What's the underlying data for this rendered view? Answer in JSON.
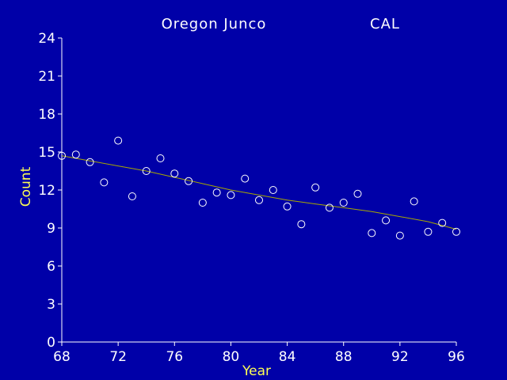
{
  "chart_data": {
    "type": "scatter",
    "title": "Oregon  Junco",
    "subtitle": "CAL",
    "xlabel": "Year",
    "ylabel": "Count",
    "xlim": [
      68,
      96
    ],
    "ylim": [
      0,
      24
    ],
    "xticks": [
      "68",
      "72",
      "76",
      "80",
      "84",
      "88",
      "92",
      "96"
    ],
    "yticks": [
      "0",
      "3",
      "6",
      "9",
      "12",
      "15",
      "18",
      "21",
      "24"
    ],
    "grid": false,
    "colors": {
      "background": "#0000a8",
      "axes": "#ffffff",
      "text": "#ffffff",
      "axis_labels": "#ffff54",
      "points": "#ffffff",
      "trend": "#a8a800"
    },
    "points": [
      {
        "x": 68,
        "y": 14.7
      },
      {
        "x": 69,
        "y": 14.8
      },
      {
        "x": 70,
        "y": 14.2
      },
      {
        "x": 71,
        "y": 12.6
      },
      {
        "x": 72,
        "y": 15.9
      },
      {
        "x": 73,
        "y": 11.5
      },
      {
        "x": 74,
        "y": 13.5
      },
      {
        "x": 75,
        "y": 14.5
      },
      {
        "x": 76,
        "y": 13.3
      },
      {
        "x": 77,
        "y": 12.7
      },
      {
        "x": 78,
        "y": 11.0
      },
      {
        "x": 79,
        "y": 11.8
      },
      {
        "x": 80,
        "y": 11.6
      },
      {
        "x": 81,
        "y": 12.9
      },
      {
        "x": 82,
        "y": 11.2
      },
      {
        "x": 83,
        "y": 12.0
      },
      {
        "x": 84,
        "y": 10.7
      },
      {
        "x": 85,
        "y": 9.3
      },
      {
        "x": 86,
        "y": 12.2
      },
      {
        "x": 87,
        "y": 10.6
      },
      {
        "x": 88,
        "y": 11.0
      },
      {
        "x": 89,
        "y": 11.7
      },
      {
        "x": 90,
        "y": 8.6
      },
      {
        "x": 91,
        "y": 9.6
      },
      {
        "x": 92,
        "y": 8.4
      },
      {
        "x": 93,
        "y": 11.1
      },
      {
        "x": 94,
        "y": 8.7
      },
      {
        "x": 95,
        "y": 9.4
      },
      {
        "x": 96,
        "y": 8.7
      }
    ],
    "trend": [
      {
        "x": 68,
        "y": 14.7
      },
      {
        "x": 70,
        "y": 14.3
      },
      {
        "x": 72,
        "y": 13.9
      },
      {
        "x": 74,
        "y": 13.5
      },
      {
        "x": 76,
        "y": 13.0
      },
      {
        "x": 78,
        "y": 12.5
      },
      {
        "x": 80,
        "y": 12.0
      },
      {
        "x": 82,
        "y": 11.6
      },
      {
        "x": 84,
        "y": 11.2
      },
      {
        "x": 86,
        "y": 10.9
      },
      {
        "x": 88,
        "y": 10.6
      },
      {
        "x": 90,
        "y": 10.3
      },
      {
        "x": 92,
        "y": 9.9
      },
      {
        "x": 94,
        "y": 9.5
      },
      {
        "x": 96,
        "y": 8.9
      }
    ]
  }
}
